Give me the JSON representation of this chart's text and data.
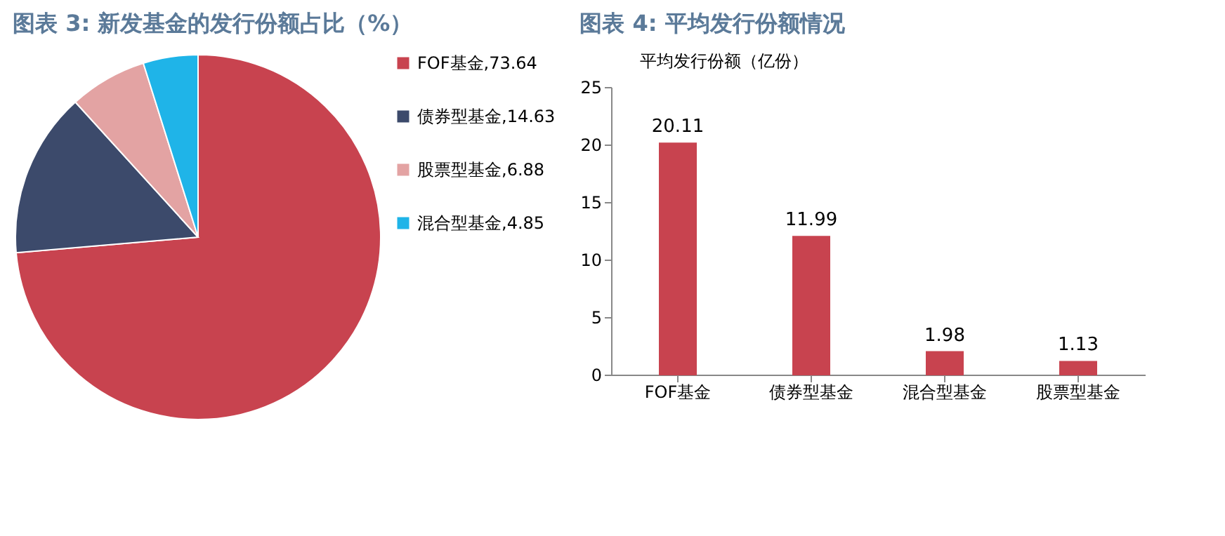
{
  "chart_data": [
    {
      "type": "pie",
      "title": "图表 3: 新发基金的发行份额占比（%）",
      "categories": [
        "FOF基金,73.64",
        "债券型基金,14.63",
        "股票型基金,6.88",
        "混合型基金,4.85"
      ],
      "values": [
        73.64,
        14.63,
        6.88,
        4.85
      ],
      "colors": [
        "#c8434f",
        "#3c4a6b",
        "#e3a3a3",
        "#1fb4e8"
      ],
      "legend": "right"
    },
    {
      "type": "bar",
      "title": "图表 4: 平均发行份额情况",
      "ylabel": "平均发行份额（亿份）",
      "categories": [
        "FOF基金",
        "债券型基金",
        "混合型基金",
        "股票型基金"
      ],
      "values": [
        20.11,
        11.99,
        1.98,
        1.13
      ],
      "color": "#c8434f",
      "ylim": [
        0,
        25
      ],
      "yticks": [
        0,
        5,
        10,
        15,
        20,
        25
      ],
      "grid": false,
      "data_labels": true
    }
  ]
}
